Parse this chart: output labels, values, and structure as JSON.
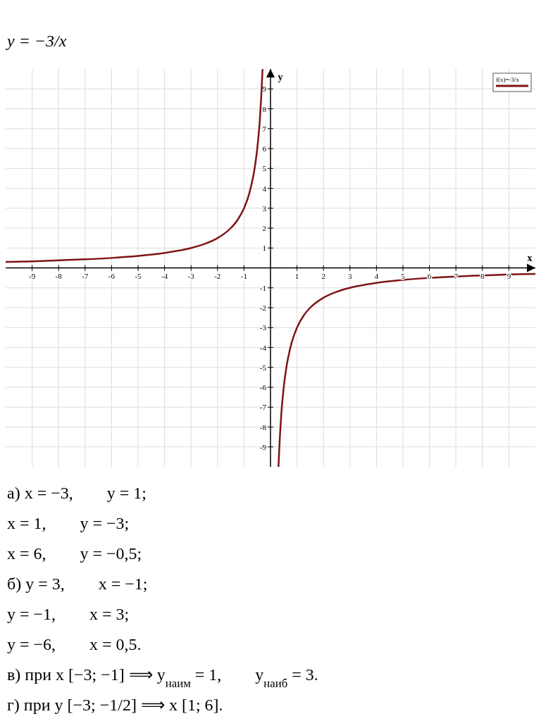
{
  "chart_data": {
    "type": "line",
    "title": "y = −3/x",
    "xlabel": "x",
    "ylabel": "y",
    "xlim": [
      -10,
      10
    ],
    "ylim": [
      -10,
      10
    ],
    "xticks": [
      -9,
      -8,
      -7,
      -6,
      -5,
      -4,
      -3,
      -2,
      -1,
      1,
      2,
      3,
      4,
      5,
      6,
      7,
      8,
      9
    ],
    "yticks": [
      -9,
      -8,
      -7,
      -6,
      -5,
      -4,
      -3,
      -2,
      -1,
      1,
      2,
      3,
      4,
      5,
      6,
      7,
      8,
      9
    ],
    "grid": true,
    "legend": "top right",
    "series": [
      {
        "name": "f(x)=-3/x",
        "color": "#7f1416",
        "x": [
          -10,
          -9,
          -8,
          -7,
          -6,
          -5,
          -4,
          -3,
          -2.5,
          -2,
          -1.5,
          -1.25,
          -1,
          -0.8,
          -0.6,
          -0.5,
          -0.4,
          -0.35,
          -0.3,
          0,
          0.3,
          0.35,
          0.4,
          0.5,
          0.6,
          0.8,
          1,
          1.25,
          1.5,
          2,
          2.5,
          3,
          4,
          5,
          6,
          7,
          8,
          9,
          10
        ],
        "values": [
          0.3,
          0.33,
          0.38,
          0.43,
          0.5,
          0.6,
          0.75,
          1,
          1.2,
          1.5,
          2,
          2.4,
          3,
          3.75,
          5,
          6,
          7.5,
          8.6,
          10,
          null,
          -10,
          -8.6,
          -7.5,
          -6,
          -5,
          -3.75,
          -3,
          -2.4,
          -2,
          -1.5,
          -1.2,
          -1,
          -0.75,
          -0.6,
          -0.5,
          -0.43,
          -0.38,
          -0.33,
          -0.3
        ]
      }
    ],
    "annotations": [
      "а) x = −3,        y = 1;",
      "x = 1,        y = −3;",
      "x = 6,        y = −0,5;",
      "б) y = 3,        x = −1;",
      "y = −1,        x = 3;",
      "y = −6,        x = 0,5.",
      "в) при x [−3; −1] ⟹ y$_{наим}$ = 1,        y$_{наиб}$ = 3.",
      "г) при y [−3; −1/2] ⟹ x [1; 6]."
    ]
  }
}
